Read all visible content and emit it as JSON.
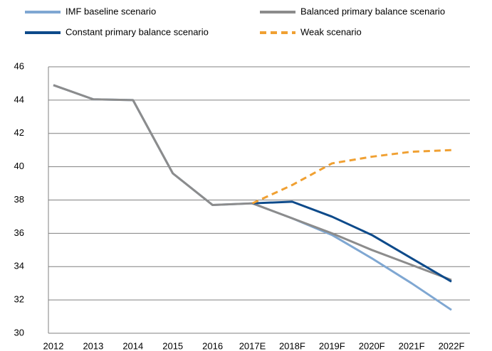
{
  "chart_data": {
    "type": "line",
    "categories": [
      "2012",
      "2013",
      "2014",
      "2015",
      "2016",
      "2017E",
      "2018F",
      "2019F",
      "2020F",
      "2021F",
      "2022F"
    ],
    "series": [
      {
        "name": "IMF baseline scenario",
        "color": "#7fa7d2",
        "values": [
          44.9,
          44.05,
          44.0,
          39.6,
          37.7,
          37.8,
          36.9,
          35.9,
          34.5,
          33.0,
          31.4
        ]
      },
      {
        "name": "Balanced primary balance scenario",
        "color": "#8c8c8c",
        "values": [
          44.9,
          44.05,
          44.0,
          39.6,
          37.7,
          37.8,
          36.9,
          36.0,
          35.0,
          34.1,
          33.2
        ]
      },
      {
        "name": "Constant primary balance scenario",
        "color": "#0d4a8a",
        "values": [
          null,
          null,
          null,
          null,
          null,
          37.8,
          37.9,
          37.0,
          35.9,
          34.5,
          33.1
        ]
      },
      {
        "name": "Weak scenario",
        "color": "#f0a032",
        "dashed": true,
        "values": [
          null,
          null,
          null,
          null,
          null,
          37.8,
          38.9,
          40.2,
          40.6,
          40.9,
          41.0
        ]
      }
    ],
    "ylim": [
      30,
      46
    ],
    "yticks": [
      30,
      32,
      34,
      36,
      38,
      40,
      42,
      44,
      46
    ],
    "grid": true
  }
}
